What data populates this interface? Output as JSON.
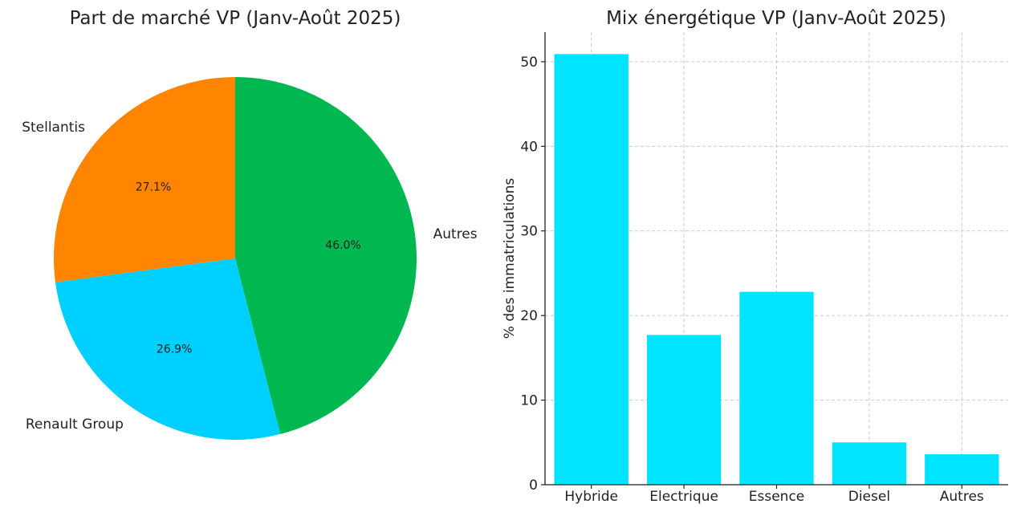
{
  "chart_data": [
    {
      "type": "pie",
      "title": "Part de marché VP (Janv-Août 2025)",
      "slices": [
        {
          "label": "Autres",
          "value": 46.0,
          "pct_label": "46.0%",
          "color": "#00b84f"
        },
        {
          "label": "Renault Group",
          "value": 26.9,
          "pct_label": "26.9%",
          "color": "#00d0ff"
        },
        {
          "label": "Stellantis",
          "value": 27.1,
          "pct_label": "27.1%",
          "color": "#ff8400"
        }
      ],
      "start_angle_deg": 90,
      "direction": "clockwise"
    },
    {
      "type": "bar",
      "title": "Mix énergétique VP (Janv-Août 2025)",
      "categories": [
        "Hybride",
        "Electrique",
        "Essence",
        "Diesel",
        "Autres"
      ],
      "values": [
        50.9,
        17.7,
        22.8,
        5.0,
        3.6
      ],
      "color": "#00e4ff",
      "xlabel": "",
      "ylabel": "% des immatriculations",
      "ylim": [
        0,
        53.5
      ],
      "yticks": [
        0,
        10,
        20,
        30,
        40,
        50
      ],
      "grid": true
    }
  ]
}
